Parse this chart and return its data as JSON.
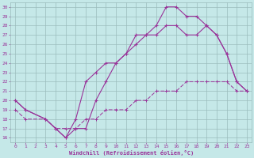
{
  "xlabel": "Windchill (Refroidissement éolien,°C)",
  "xlim": [
    -0.5,
    23.5
  ],
  "ylim": [
    15.5,
    30.5
  ],
  "xticks": [
    0,
    1,
    2,
    3,
    4,
    5,
    6,
    7,
    8,
    9,
    10,
    11,
    12,
    13,
    14,
    15,
    16,
    17,
    18,
    19,
    20,
    21,
    22,
    23
  ],
  "yticks": [
    16,
    17,
    18,
    19,
    20,
    21,
    22,
    23,
    24,
    25,
    26,
    27,
    28,
    29,
    30
  ],
  "bg_color": "#c5e8e8",
  "grid_color": "#9bbcbc",
  "line_color": "#993399",
  "line1_x": [
    0,
    1,
    3,
    4,
    5,
    6,
    7,
    8,
    9,
    10,
    11,
    12,
    13,
    14,
    15,
    16,
    17,
    18,
    19,
    20,
    21,
    22,
    23
  ],
  "line1_y": [
    20,
    19,
    18,
    17,
    16,
    17,
    17,
    20,
    22,
    24,
    25,
    27,
    27,
    28,
    30,
    30,
    29,
    29,
    28,
    27,
    25,
    22,
    21
  ],
  "line2_x": [
    0,
    1,
    3,
    4,
    5,
    6,
    7,
    8,
    9,
    10,
    11,
    12,
    13,
    14,
    15,
    16,
    17,
    18,
    19,
    20,
    21,
    22,
    23
  ],
  "line2_y": [
    20,
    19,
    18,
    17,
    16,
    18,
    22,
    23,
    24,
    24,
    25,
    26,
    27,
    27,
    28,
    28,
    27,
    27,
    28,
    27,
    25,
    22,
    21
  ],
  "line3_x": [
    0,
    1,
    3,
    4,
    5,
    6,
    7,
    8,
    9,
    10,
    11,
    12,
    13,
    14,
    15,
    16,
    17,
    18,
    19,
    20,
    21,
    22,
    23
  ],
  "line3_y": [
    19,
    18,
    18,
    17,
    17,
    17,
    18,
    18,
    19,
    19,
    19,
    20,
    20,
    21,
    21,
    21,
    22,
    22,
    22,
    22,
    22,
    21,
    21
  ],
  "tick_fontsize": 4.5,
  "xlabel_fontsize": 5.0
}
